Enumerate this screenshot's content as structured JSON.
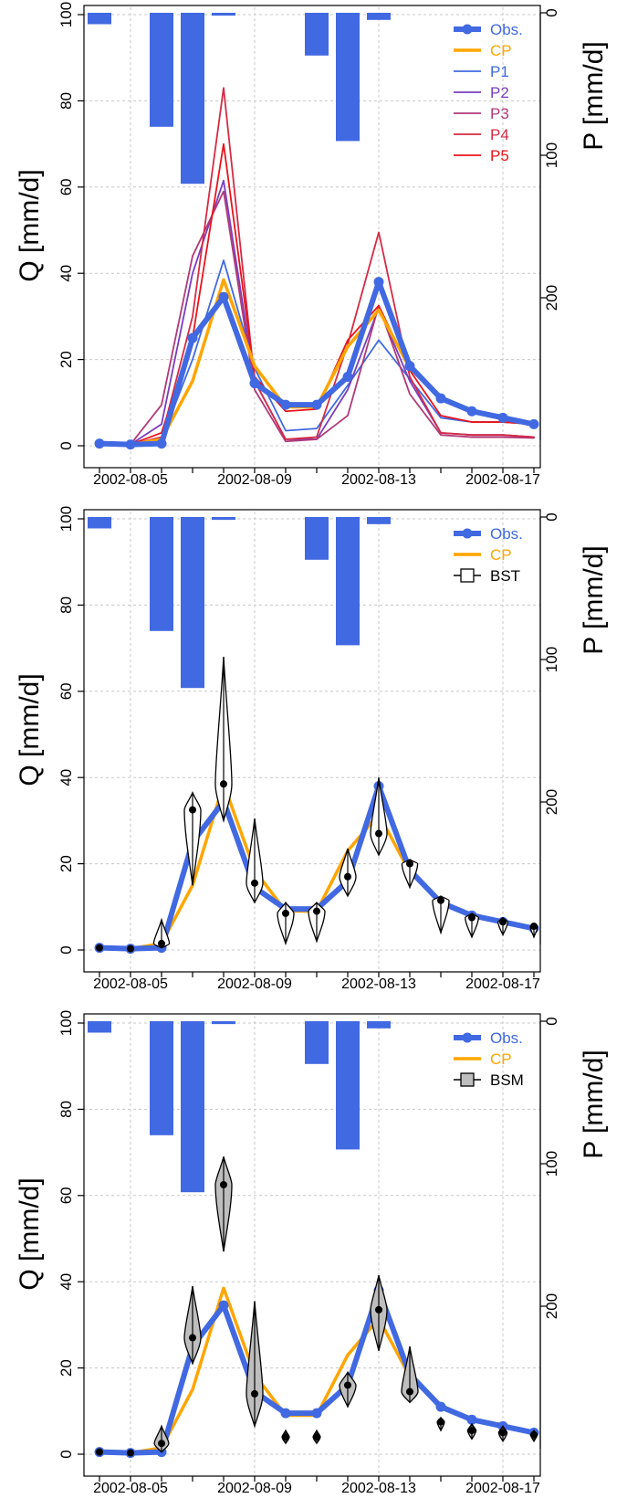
{
  "colors": {
    "obs": "#4169E1",
    "cp": "#FFA500",
    "p1": "#4169E1",
    "p2": "#7A3DBE",
    "p3": "#B03A78",
    "p4": "#D52B45",
    "p5": "#E8141C",
    "precip": "#4169E1",
    "bsm_fill": "#BEBEBE",
    "bst_fill": "#FFFFFF"
  },
  "chart_data": [
    {
      "type": "line",
      "ylabel": "Q [mm/d]",
      "y2label": "P [mm/d]",
      "ylim": [
        0,
        100
      ],
      "y2lim": [
        0,
        300
      ],
      "y2reversed": true,
      "yticks": [
        "0",
        "20",
        "40",
        "60",
        "80",
        "100"
      ],
      "y2ticks": [
        "0",
        "100",
        "200"
      ],
      "x": [
        "2002-08-04",
        "2002-08-05",
        "2002-08-06",
        "2002-08-07",
        "2002-08-08",
        "2002-08-09",
        "2002-08-10",
        "2002-08-11",
        "2002-08-12",
        "2002-08-13",
        "2002-08-14",
        "2002-08-15",
        "2002-08-16",
        "2002-08-17",
        "2002-08-18"
      ],
      "xticks": [
        "2002-08-05",
        "2002-08-09",
        "2002-08-13",
        "2002-08-17"
      ],
      "grid": true,
      "legend_position": "top-right",
      "precipitation": [
        8,
        0,
        80,
        120,
        2,
        0,
        0,
        30,
        90,
        5,
        0,
        0,
        0,
        0,
        0
      ],
      "series": [
        {
          "name": "Obs.",
          "values": [
            0.5,
            0.3,
            0.5,
            25,
            34.5,
            14.5,
            9.5,
            9.5,
            16,
            38,
            18.5,
            11,
            8,
            6.5,
            5
          ]
        },
        {
          "name": "CP",
          "values": [
            0.5,
            0.3,
            1.5,
            15,
            38.5,
            18.5,
            9,
            9,
            23,
            31.5,
            18,
            11,
            8,
            6.5,
            5
          ]
        },
        {
          "name": "P1",
          "values": [
            0.5,
            0.3,
            1.5,
            20,
            43,
            18,
            3.5,
            4,
            14,
            24.5,
            15.5,
            6.5,
            5.5,
            5.5,
            5
          ]
        },
        {
          "name": "P2",
          "values": [
            0.5,
            0.3,
            5,
            40,
            61.5,
            15,
            1.5,
            1.5,
            13,
            32,
            15,
            3,
            2.5,
            2.5,
            2
          ]
        },
        {
          "name": "P3",
          "values": [
            0.5,
            0.3,
            9.5,
            44,
            59,
            13,
            1,
            1.5,
            7,
            32.5,
            12,
            2.5,
            2,
            2,
            1.8
          ]
        },
        {
          "name": "P4",
          "values": [
            0.5,
            0.3,
            2,
            30,
            83,
            15,
            1.5,
            2,
            23.5,
            49.5,
            16,
            3,
            2.5,
            2.5,
            2
          ]
        },
        {
          "name": "P5",
          "values": [
            0.5,
            0.3,
            3,
            25,
            70,
            16,
            8,
            8.5,
            24.5,
            32.5,
            17.5,
            7,
            5.5,
            5.5,
            5
          ]
        }
      ]
    },
    {
      "type": "line",
      "ylabel": "Q [mm/d]",
      "y2label": "P [mm/d]",
      "ylim": [
        0,
        100
      ],
      "y2lim": [
        0,
        300
      ],
      "y2reversed": true,
      "yticks": [
        "0",
        "20",
        "40",
        "60",
        "80",
        "100"
      ],
      "y2ticks": [
        "0",
        "100",
        "200"
      ],
      "x": [
        "2002-08-04",
        "2002-08-05",
        "2002-08-06",
        "2002-08-07",
        "2002-08-08",
        "2002-08-09",
        "2002-08-10",
        "2002-08-11",
        "2002-08-12",
        "2002-08-13",
        "2002-08-14",
        "2002-08-15",
        "2002-08-16",
        "2002-08-17",
        "2002-08-18"
      ],
      "xticks": [
        "2002-08-05",
        "2002-08-09",
        "2002-08-13",
        "2002-08-17"
      ],
      "grid": true,
      "legend_position": "top-right",
      "precipitation": [
        8,
        0,
        80,
        120,
        2,
        0,
        0,
        30,
        90,
        5,
        0,
        0,
        0,
        0,
        0
      ],
      "series": [
        {
          "name": "Obs.",
          "values": [
            0.5,
            0.3,
            0.5,
            25,
            34.5,
            14.5,
            9.5,
            9.5,
            16,
            38,
            18.5,
            11,
            8,
            6.5,
            5
          ]
        },
        {
          "name": "CP",
          "values": [
            0.5,
            0.3,
            1.5,
            15,
            38.5,
            18.5,
            9,
            9,
            23,
            31.5,
            18,
            11,
            8,
            6.5,
            5
          ]
        }
      ],
      "violins": {
        "name": "BST",
        "items": [
          {
            "min": 0.2,
            "max": 1.2,
            "median": 0.5
          },
          {
            "min": 0.1,
            "max": 1.0,
            "median": 0.3
          },
          {
            "min": 0.5,
            "max": 7,
            "median": 1.5
          },
          {
            "min": 15,
            "max": 36.5,
            "median": 32.5
          },
          {
            "min": 30,
            "max": 68,
            "median": 38.5
          },
          {
            "min": 11,
            "max": 30.5,
            "median": 15.5
          },
          {
            "min": 1.5,
            "max": 11,
            "median": 8.5
          },
          {
            "min": 2,
            "max": 11,
            "median": 9
          },
          {
            "min": 12.5,
            "max": 23.5,
            "median": 17
          },
          {
            "min": 22,
            "max": 40,
            "median": 27
          },
          {
            "min": 14.5,
            "max": 21,
            "median": 20
          },
          {
            "min": 4,
            "max": 12.5,
            "median": 11.5
          },
          {
            "min": 3,
            "max": 8.5,
            "median": 7.5
          },
          {
            "min": 3.5,
            "max": 7.5,
            "median": 6.5
          },
          {
            "min": 3,
            "max": 6,
            "median": 5.5
          }
        ]
      }
    },
    {
      "type": "line",
      "ylabel": "Q [mm/d]",
      "y2label": "P [mm/d]",
      "ylim": [
        0,
        100
      ],
      "y2lim": [
        0,
        300
      ],
      "y2reversed": true,
      "yticks": [
        "0",
        "20",
        "40",
        "60",
        "80",
        "100"
      ],
      "y2ticks": [
        "0",
        "100",
        "200"
      ],
      "x": [
        "2002-08-04",
        "2002-08-05",
        "2002-08-06",
        "2002-08-07",
        "2002-08-08",
        "2002-08-09",
        "2002-08-10",
        "2002-08-11",
        "2002-08-12",
        "2002-08-13",
        "2002-08-14",
        "2002-08-15",
        "2002-08-16",
        "2002-08-17",
        "2002-08-18"
      ],
      "xticks": [
        "2002-08-05",
        "2002-08-09",
        "2002-08-13",
        "2002-08-17"
      ],
      "grid": true,
      "legend_position": "top-right",
      "precipitation": [
        8,
        0,
        80,
        120,
        2,
        0,
        0,
        30,
        90,
        5,
        0,
        0,
        0,
        0,
        0
      ],
      "series": [
        {
          "name": "Obs.",
          "values": [
            0.5,
            0.3,
            0.5,
            25,
            34.5,
            14.5,
            9.5,
            9.5,
            16,
            38,
            18.5,
            11,
            8,
            6.5,
            5
          ]
        },
        {
          "name": "CP",
          "values": [
            0.5,
            0.3,
            1.5,
            15,
            38.5,
            18.5,
            9,
            9,
            23,
            31.5,
            18,
            11,
            8,
            6.5,
            5
          ]
        }
      ],
      "violins": {
        "name": "BSM",
        "items": [
          {
            "min": 0.2,
            "max": 1.2,
            "median": 0.5
          },
          {
            "min": 0.1,
            "max": 1.0,
            "median": 0.3
          },
          {
            "min": 0.5,
            "max": 6.5,
            "median": 2.5
          },
          {
            "min": 21,
            "max": 39,
            "median": 27
          },
          {
            "min": 47,
            "max": 69,
            "median": 62.5
          },
          {
            "min": 6.5,
            "max": 35.5,
            "median": 14
          },
          {
            "min": 2.5,
            "max": 5.5,
            "median": 4
          },
          {
            "min": 2.5,
            "max": 5.5,
            "median": 4
          },
          {
            "min": 11,
            "max": 19,
            "median": 16
          },
          {
            "min": 24,
            "max": 41.5,
            "median": 33.5
          },
          {
            "min": 12,
            "max": 25,
            "median": 14.5
          },
          {
            "min": 5.5,
            "max": 8.5,
            "median": 7.5
          },
          {
            "min": 3.5,
            "max": 7,
            "median": 5.5
          },
          {
            "min": 3,
            "max": 6.5,
            "median": 5
          },
          {
            "min": 3,
            "max": 5.5,
            "median": 4.5
          }
        ]
      }
    }
  ]
}
